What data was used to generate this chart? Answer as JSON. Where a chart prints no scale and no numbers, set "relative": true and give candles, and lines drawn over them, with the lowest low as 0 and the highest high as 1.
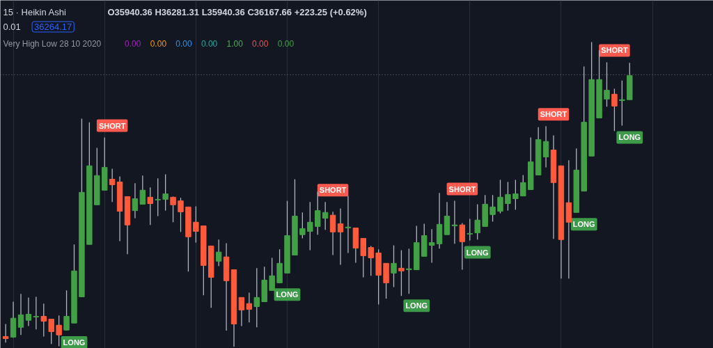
{
  "chart_data": {
    "type": "candlestick",
    "title": "15 · Heikin Ashi",
    "relative": true,
    "tick_labels": false,
    "grid": "x",
    "categories": [
      null,
      null,
      null,
      null,
      null,
      null,
      null,
      null,
      null,
      null,
      null,
      null,
      null,
      null,
      null,
      null,
      null,
      null,
      null,
      null,
      null,
      null,
      null,
      null,
      null,
      null,
      null,
      null,
      null,
      null,
      null,
      null,
      null,
      null,
      null,
      null,
      null,
      null,
      null,
      null,
      null,
      null,
      null,
      null,
      null,
      null,
      null,
      null,
      null,
      null,
      null,
      null,
      null,
      null,
      null,
      null,
      null,
      null,
      null,
      null,
      null,
      null,
      null,
      null,
      null,
      null,
      null,
      null,
      null,
      null,
      null,
      null,
      null,
      null,
      null,
      null,
      null,
      null,
      null,
      null,
      null,
      null,
      null
    ],
    "value_labels": [
      null,
      null,
      null,
      null,
      null,
      null,
      null,
      null,
      null,
      "LONG",
      null,
      null,
      null,
      null,
      "SHORT",
      null,
      null,
      null,
      null,
      null,
      null,
      null,
      null,
      null,
      null,
      null,
      null,
      null,
      null,
      null,
      null,
      null,
      null,
      null,
      null,
      null,
      null,
      "LONG",
      null,
      null,
      null,
      null,
      null,
      "SHORT",
      null,
      null,
      null,
      null,
      null,
      null,
      null,
      null,
      null,
      null,
      "LONG",
      null,
      null,
      null,
      null,
      null,
      "SHORT",
      null,
      "LONG",
      null,
      null,
      null,
      null,
      null,
      null,
      null,
      null,
      null,
      "SHORT",
      null,
      null,
      null,
      "LONG",
      null,
      null,
      null,
      "SHORT",
      null,
      "LONG"
    ],
    "ohlc": [
      [
        0.034,
        0.075,
        0.014,
        0.027
      ],
      [
        0.032,
        0.148,
        0.03,
        0.094
      ],
      [
        0.064,
        0.174,
        0.039,
        0.105
      ],
      [
        0.087,
        0.162,
        0.068,
        0.107
      ],
      [
        0.098,
        0.164,
        0.057,
        0.1
      ],
      [
        0.1,
        0.142,
        0.034,
        0.084
      ],
      [
        0.091,
        0.091,
        0.009,
        0.05
      ],
      [
        0.071,
        0.103,
        0.002,
        0.039
      ],
      [
        0.055,
        0.185,
        0.053,
        0.1
      ],
      [
        0.078,
        0.336,
        0.078,
        0.249
      ],
      [
        0.164,
        0.749,
        0.164,
        0.507
      ],
      [
        0.336,
        0.737,
        0.336,
        0.594
      ],
      [
        0.466,
        0.653,
        0.466,
        0.562
      ],
      [
        0.514,
        0.687,
        0.514,
        0.589
      ],
      [
        0.55,
        0.584,
        0.475,
        0.532
      ],
      [
        0.541,
        0.559,
        0.347,
        0.445
      ],
      [
        0.493,
        0.493,
        0.304,
        0.4
      ],
      [
        0.447,
        0.537,
        0.422,
        0.486
      ],
      [
        0.468,
        0.562,
        0.468,
        0.514
      ],
      [
        0.491,
        0.523,
        0.4,
        0.47
      ],
      [
        0.482,
        0.553,
        0.429,
        0.484
      ],
      [
        0.484,
        0.566,
        0.447,
        0.502
      ],
      [
        0.491,
        0.493,
        0.409,
        0.466
      ],
      [
        0.479,
        0.489,
        0.377,
        0.443
      ],
      [
        0.459,
        0.459,
        0.247,
        0.361
      ],
      [
        0.409,
        0.461,
        0.342,
        0.379
      ],
      [
        0.397,
        0.397,
        0.169,
        0.267
      ],
      [
        0.331,
        0.331,
        0.128,
        0.228
      ],
      [
        0.281,
        0.352,
        0.265,
        0.311
      ],
      [
        0.295,
        0.34,
        0.053,
        0.217
      ],
      [
        0.253,
        0.253,
        0,
        0.075
      ],
      [
        0.162,
        0.162,
        0.068,
        0.121
      ],
      [
        0.142,
        0.178,
        0.08,
        0.123
      ],
      [
        0.132,
        0.258,
        0.064,
        0.162
      ],
      [
        0.148,
        0.263,
        0.148,
        0.219
      ],
      [
        0.185,
        0.292,
        0.185,
        0.233
      ],
      [
        0.21,
        0.32,
        0.21,
        0.274
      ],
      [
        0.242,
        0.479,
        0.242,
        0.365
      ],
      [
        0.301,
        0.55,
        0.301,
        0.429
      ],
      [
        0.368,
        0.441,
        0.356,
        0.388
      ],
      [
        0.379,
        0.475,
        0.317,
        0.409
      ],
      [
        0.395,
        0.509,
        0.368,
        0.447
      ],
      [
        0.422,
        0.475,
        0.384,
        0.441
      ],
      [
        0.432,
        0.443,
        0.301,
        0.377
      ],
      [
        0.404,
        0.454,
        0.269,
        0.377
      ],
      [
        0.39,
        0.495,
        0.308,
        0.393
      ],
      [
        0.39,
        0.39,
        0.276,
        0.324
      ],
      [
        0.356,
        0.356,
        0.228,
        0.299
      ],
      [
        0.326,
        0.331,
        0.233,
        0.292
      ],
      [
        0.308,
        0.32,
        0.139,
        0.235
      ],
      [
        0.274,
        0.274,
        0.158,
        0.21
      ],
      [
        0.242,
        0.333,
        0.196,
        0.274
      ],
      [
        0.258,
        0.317,
        0.167,
        0.249
      ],
      [
        0.253,
        0.322,
        0.174,
        0.256
      ],
      [
        0.253,
        0.397,
        0.253,
        0.342
      ],
      [
        0.297,
        0.404,
        0.297,
        0.365
      ],
      [
        0.333,
        0.386,
        0.276,
        0.342
      ],
      [
        0.338,
        0.505,
        0.322,
        0.402
      ],
      [
        0.368,
        0.475,
        0.368,
        0.429
      ],
      [
        0.397,
        0.479,
        0.338,
        0.4
      ],
      [
        0.4,
        0.406,
        0.253,
        0.345
      ],
      [
        0.37,
        0.42,
        0.349,
        0.372
      ],
      [
        0.374,
        0.468,
        0.352,
        0.416
      ],
      [
        0.395,
        0.498,
        0.395,
        0.468
      ],
      [
        0.434,
        0.498,
        0.411,
        0.459
      ],
      [
        0.445,
        0.548,
        0.438,
        0.491
      ],
      [
        0.47,
        0.541,
        0.447,
        0.5
      ],
      [
        0.486,
        0.548,
        0.45,
        0.502
      ],
      [
        0.495,
        0.564,
        0.495,
        0.539
      ],
      [
        0.516,
        0.687,
        0.516,
        0.607
      ],
      [
        0.564,
        0.721,
        0.564,
        0.68
      ],
      [
        0.623,
        0.724,
        0.589,
        0.674
      ],
      [
        0.646,
        0.694,
        0.354,
        0.539
      ],
      [
        0.594,
        0.594,
        0.224,
        0.352
      ],
      [
        0.473,
        0.612,
        0.224,
        0.409
      ],
      [
        0.441,
        0.651,
        0.441,
        0.58
      ],
      [
        0.511,
        0.92,
        0.511,
        0.737
      ],
      [
        0.626,
        1,
        0.626,
        0.877
      ],
      [
        0.751,
        0.973,
        0.751,
        0.877
      ],
      [
        0.813,
        0.934,
        0.788,
        0.842
      ],
      [
        0.829,
        0.847,
        0.708,
        0.79
      ],
      [
        0.808,
        0.874,
        0.726,
        0.811
      ],
      [
        0.811,
        0.932,
        0.811,
        0.89
      ]
    ],
    "colors": [
      "#ff5a3c",
      "#43a047",
      "#43a047",
      "#43a047",
      "#43a047",
      "#ff5a3c",
      "#ff5a3c",
      "#ff5a3c",
      "#43a047",
      "#43a047",
      "#43a047",
      "#43a047",
      "#43a047",
      "#43a047",
      "#ff5a3c",
      "#ff5a3c",
      "#ff5a3c",
      "#43a047",
      "#43a047",
      "#ff5a3c",
      "#43a047",
      "#43a047",
      "#ff5a3c",
      "#ff5a3c",
      "#ff5a3c",
      "#ff5a3c",
      "#ff5a3c",
      "#ff5a3c",
      "#43a047",
      "#ff5a3c",
      "#ff5a3c",
      "#ff5a3c",
      "#ff5a3c",
      "#43a047",
      "#43a047",
      "#43a047",
      "#43a047",
      "#43a047",
      "#43a047",
      "#43a047",
      "#43a047",
      "#43a047",
      "#43a047",
      "#ff5a3c",
      "#ff5a3c",
      "#43a047",
      "#ff5a3c",
      "#ff5a3c",
      "#ff5a3c",
      "#ff5a3c",
      "#ff5a3c",
      "#43a047",
      "#ff5a3c",
      "#43a047",
      "#43a047",
      "#43a047",
      "#43a047",
      "#43a047",
      "#43a047",
      "#43a047",
      "#ff5a3c",
      "#43a047",
      "#43a047",
      "#43a047",
      "#43a047",
      "#43a047",
      "#43a047",
      "#43a047",
      "#43a047",
      "#43a047",
      "#43a047",
      "#43a047",
      "#ff5a3c",
      "#ff5a3c",
      "#ff5a3c",
      "#43a047",
      "#43a047",
      "#43a047",
      "#43a047",
      "#43a047",
      "#ff5a3c",
      "#43a047",
      "#43a047"
    ],
    "ref_lines": [
      {
        "axis": "y",
        "value": 0.893,
        "color": "#787b86",
        "line_style": "dotted"
      }
    ],
    "annotations": [
      "O35940.36 H36281.31 L35940.36 C36167.66 +223.25 (+0.62%)",
      "0.01",
      "36264.17",
      "Very High Low 28 10 2020",
      "0.00",
      "0.00",
      "0.00",
      "0.00",
      "1.00",
      "0.00",
      "0.00"
    ]
  }
}
